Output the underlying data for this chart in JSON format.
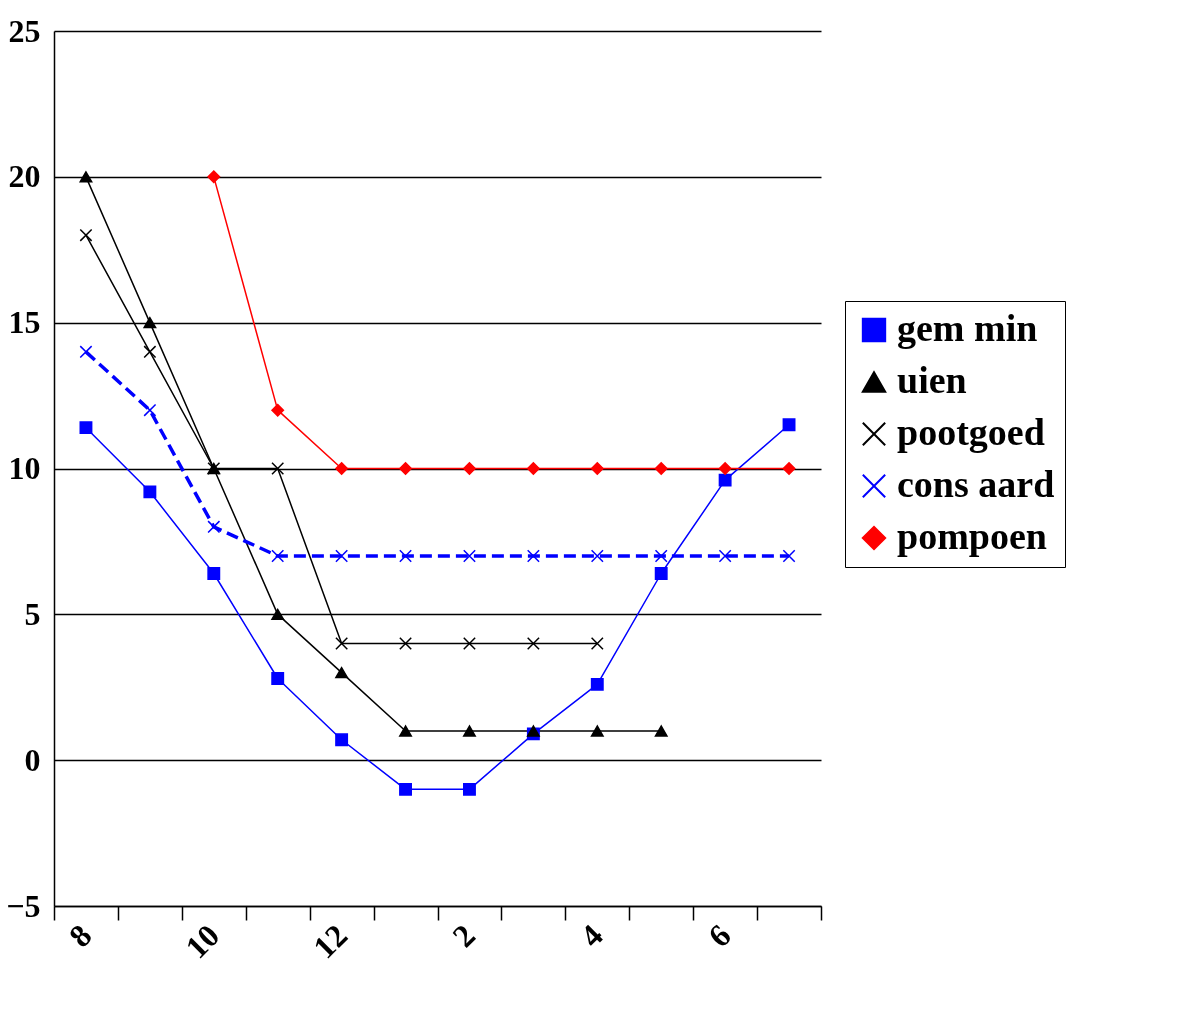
{
  "chart_data": {
    "type": "line",
    "categories": [
      "8",
      null,
      "10",
      null,
      "12",
      null,
      "2",
      null,
      "4",
      null,
      "6",
      null
    ],
    "series": [
      {
        "name": "gem min",
        "color": "#0000ff",
        "marker": "square",
        "line_style": "solid",
        "values": [
          11.4,
          9.2,
          6.4,
          2.8,
          0.7,
          -1,
          -1,
          0.9,
          2.6,
          6.4,
          9.6,
          11.5
        ]
      },
      {
        "name": "uien",
        "color": "#000000",
        "marker": "triangle",
        "line_style": "solid",
        "values": [
          20,
          15,
          10,
          5,
          3,
          1,
          1,
          1,
          1,
          1,
          null,
          null
        ]
      },
      {
        "name": "pootgoed",
        "color": "#000000",
        "marker": "cross",
        "line_style": "solid",
        "values": [
          18,
          14,
          10,
          10,
          4,
          4,
          4,
          4,
          4,
          null,
          null,
          null
        ]
      },
      {
        "name": "cons aard",
        "color": "#0000ff",
        "marker": "cross",
        "line_style": "dashed",
        "values": [
          14,
          12,
          8,
          7,
          7,
          7,
          7,
          7,
          7,
          7,
          7,
          7
        ]
      },
      {
        "name": "pompoen",
        "color": "#ff0000",
        "marker": "diamond",
        "line_style": "solid",
        "values": [
          null,
          null,
          20,
          12,
          10,
          10,
          10,
          10,
          10,
          10,
          10,
          10
        ]
      }
    ],
    "ylim": [
      -5,
      25
    ],
    "yticks": [
      -5,
      0,
      5,
      10,
      15,
      20,
      25
    ],
    "grid": "y",
    "legend": "right"
  }
}
